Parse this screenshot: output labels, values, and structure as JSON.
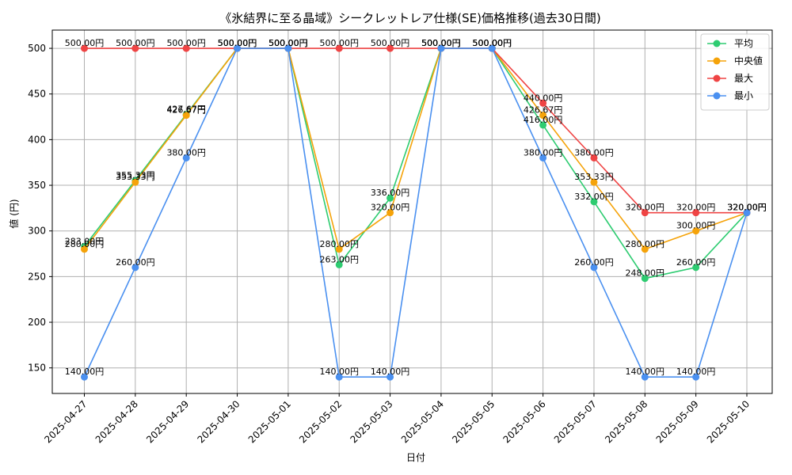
{
  "chart_data": {
    "type": "line",
    "title": "《氷結界に至る晶域》シークレットレア仕様(SE)価格推移(過去30日間)",
    "xlabel": "日付",
    "ylabel": "値 (円)",
    "ylim": [
      122,
      520
    ],
    "yticks": [
      150,
      200,
      250,
      300,
      350,
      400,
      450,
      500
    ],
    "grid": true,
    "legend_position": "top-right",
    "value_suffix": "円",
    "categories": [
      "2025-04-27",
      "2025-04-28",
      "2025-04-29",
      "2025-04-30",
      "2025-05-01",
      "2025-05-02",
      "2025-05-03",
      "2025-05-04",
      "2025-05-05",
      "2025-05-06",
      "2025-05-07",
      "2025-05-08",
      "2025-05-09",
      "2025-05-10"
    ],
    "series": [
      {
        "name": "平均",
        "color": "#2ecc71",
        "values": [
          283.0,
          355.33,
          427.67,
          500.0,
          500.0,
          263.0,
          336.0,
          500.0,
          500.0,
          416.0,
          332.0,
          248.0,
          260.0,
          320.0
        ]
      },
      {
        "name": "中央値",
        "color": "#f5a30a",
        "values": [
          280.0,
          353.33,
          426.67,
          500.0,
          500.0,
          280.0,
          320.0,
          500.0,
          500.0,
          426.67,
          353.33,
          280.0,
          300.0,
          320.0
        ]
      },
      {
        "name": "最大",
        "color": "#ef4444",
        "values": [
          500.0,
          500.0,
          500.0,
          500.0,
          500.0,
          500.0,
          500.0,
          500.0,
          500.0,
          440.0,
          380.0,
          320.0,
          320.0,
          320.0
        ]
      },
      {
        "name": "最小",
        "color": "#4a90f0",
        "values": [
          140.0,
          260.0,
          380.0,
          500.0,
          500.0,
          140.0,
          140.0,
          500.0,
          500.0,
          380.0,
          260.0,
          140.0,
          140.0,
          320.0
        ]
      }
    ]
  }
}
